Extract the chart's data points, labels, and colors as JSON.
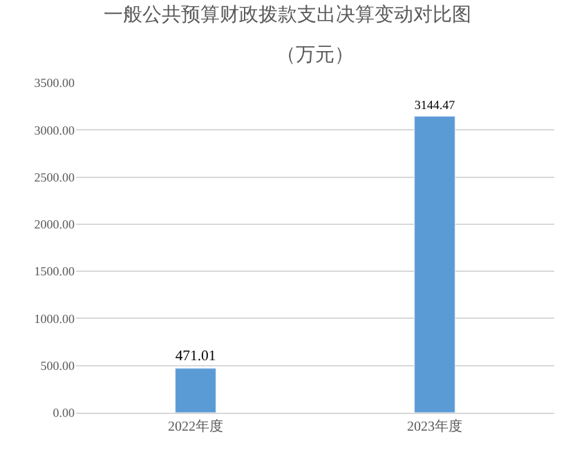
{
  "chart_data": {
    "type": "bar",
    "title": "一般公共预算财政拨款支出决算变动对比图",
    "subtitle": "（万元）",
    "categories": [
      "2022年度",
      "2023年度"
    ],
    "values": [
      471.01,
      3144.47
    ],
    "color": "#5b9bd5",
    "ylim": [
      0,
      3500
    ],
    "yticks": [
      {
        "value": 0,
        "label": "0.00"
      },
      {
        "value": 500,
        "label": "500.00"
      },
      {
        "value": 1000,
        "label": "1000.00"
      },
      {
        "value": 1500,
        "label": "1500.00"
      },
      {
        "value": 2000,
        "label": "2000.00"
      },
      {
        "value": 2500,
        "label": "2500.00"
      },
      {
        "value": 3000,
        "label": "3000.00"
      },
      {
        "value": 3500,
        "label": "3500.00"
      }
    ],
    "grid": "y",
    "data_labels": true,
    "legend": false
  }
}
